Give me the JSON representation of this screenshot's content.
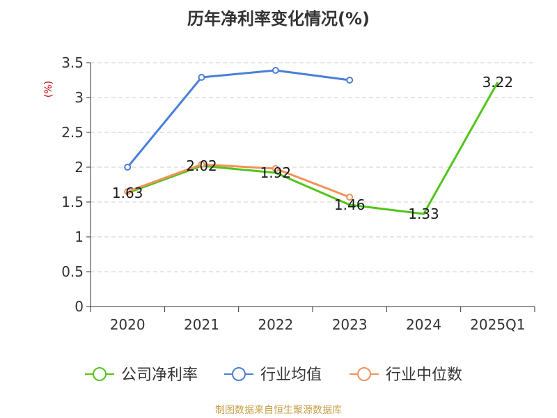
{
  "chart_data": {
    "type": "line",
    "title": "历年净利率变化情况(%)",
    "ylabel": "(%)",
    "categories": [
      "2020",
      "2021",
      "2022",
      "2023",
      "2024",
      "2025Q1"
    ],
    "ylim": [
      0,
      3.5
    ],
    "yticks": [
      "0",
      "0.5",
      "1",
      "1.5",
      "2",
      "2.5",
      "3",
      "3.5"
    ],
    "grid": true,
    "legend_position": "bottom",
    "series": [
      {
        "name": "公司净利率",
        "color": "#52c41a",
        "values": [
          1.63,
          2.02,
          1.92,
          1.46,
          1.33,
          3.22
        ],
        "labels": [
          "1.63",
          "2.02",
          "1.92",
          "1.46",
          "1.33",
          "3.22"
        ]
      },
      {
        "name": "行业均值",
        "color": "#4a7fd8",
        "values": [
          2.0,
          3.29,
          3.39,
          3.25,
          null,
          null
        ]
      },
      {
        "name": "行业中位数",
        "color": "#f0935a",
        "values": [
          1.65,
          2.04,
          1.98,
          1.57,
          null,
          null
        ]
      }
    ]
  },
  "footer": {
    "source": "制图数据来自恒生聚源数据库"
  }
}
